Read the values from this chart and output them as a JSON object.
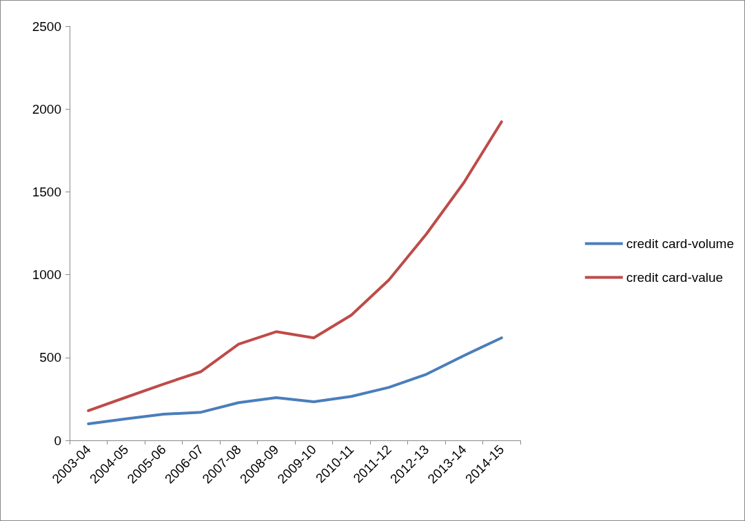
{
  "chart_data": {
    "type": "line",
    "categories": [
      "2003-04",
      "2004-05",
      "2005-06",
      "2006-07",
      "2007-08",
      "2008-09",
      "2009-10",
      "2010-11",
      "2011-12",
      "2012-13",
      "2013-14",
      "2014-15"
    ],
    "series": [
      {
        "name": "credit card-volume",
        "color": "#4a7ebb",
        "values": [
          100,
          130,
          158,
          170,
          228,
          258,
          233,
          265,
          320,
          399,
          512,
          619
        ]
      },
      {
        "name": "credit card-value",
        "color": "#be4b48",
        "values": [
          179,
          260,
          340,
          415,
          581,
          656,
          619,
          756,
          968,
          1246,
          1557,
          1923
        ]
      }
    ],
    "ylim": [
      0,
      2500
    ],
    "yticks": [
      0,
      500,
      1000,
      1500,
      2000,
      2500
    ],
    "grid": false,
    "legend": "right",
    "marker": "none",
    "line_style": "solid"
  }
}
